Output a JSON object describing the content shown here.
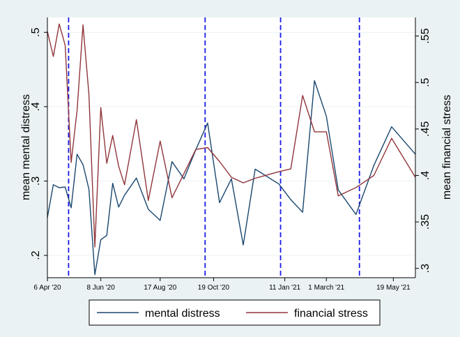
{
  "chart_data": {
    "type": "line",
    "x_tick_labels": [
      "6 Apr '20",
      "8 Jun '20",
      "17 Aug '20",
      "19 Oct '20",
      "11 Jan '21",
      "1 March '21",
      "19 May '21"
    ],
    "x_tick_dates": [
      "2020-04-06",
      "2020-06-08",
      "2020-08-17",
      "2020-10-19",
      "2021-01-11",
      "2021-03-01",
      "2021-05-19"
    ],
    "ylabel_left": "mean mental distress",
    "ylabel_right": "mean financial stress",
    "y_left_ticks": [
      ".2",
      ".3",
      ".4",
      ".5"
    ],
    "y_left_tick_values": [
      0.2,
      0.3,
      0.4,
      0.5
    ],
    "y_right_ticks": [
      ".3",
      ".35",
      ".4",
      ".45",
      ".5",
      ".55"
    ],
    "y_right_tick_values": [
      0.3,
      0.35,
      0.4,
      0.45,
      0.5,
      0.55
    ],
    "ylim_left": [
      0.17,
      0.52
    ],
    "ylim_right": [
      0.29,
      0.57
    ],
    "xlim": [
      "2020-04-06",
      "2021-06-14"
    ],
    "vlines": [
      "2020-05-01",
      "2020-10-09",
      "2021-01-06",
      "2021-04-09"
    ],
    "grid": true,
    "legend_position": "bottom",
    "colors": {
      "background": "#eaf2f3",
      "plot_area": "#ffffff",
      "mental": "#1a476f",
      "financial": "#90353b",
      "vline": "#1a1ae6",
      "grid": "#eaf2f3"
    },
    "series": [
      {
        "name": "mental distress",
        "axis": "left",
        "x": [
          "2020-04-06",
          "2020-04-13",
          "2020-04-20",
          "2020-04-27",
          "2020-05-04",
          "2020-05-11",
          "2020-05-18",
          "2020-05-25",
          "2020-06-01",
          "2020-06-08",
          "2020-06-15",
          "2020-06-22",
          "2020-06-29",
          "2020-07-06",
          "2020-07-20",
          "2020-08-03",
          "2020-08-17",
          "2020-08-31",
          "2020-09-14",
          "2020-09-28",
          "2020-10-12",
          "2020-10-26",
          "2020-11-09",
          "2020-11-23",
          "2020-12-07",
          "2021-01-04",
          "2021-01-18",
          "2021-02-01",
          "2021-02-15",
          "2021-03-01",
          "2021-03-15",
          "2021-04-05",
          "2021-04-26",
          "2021-05-17",
          "2021-06-14"
        ],
        "values": [
          0.251,
          0.295,
          0.291,
          0.292,
          0.264,
          0.336,
          0.322,
          0.289,
          0.174,
          0.221,
          0.227,
          0.297,
          0.265,
          0.281,
          0.304,
          0.262,
          0.247,
          0.326,
          0.303,
          0.342,
          0.378,
          0.271,
          0.303,
          0.214,
          0.316,
          0.296,
          0.275,
          0.258,
          0.435,
          0.387,
          0.288,
          0.255,
          0.321,
          0.373,
          0.336
        ]
      },
      {
        "name": "financial stress",
        "axis": "right",
        "x": [
          "2020-04-06",
          "2020-04-13",
          "2020-04-20",
          "2020-04-27",
          "2020-05-04",
          "2020-05-11",
          "2020-05-18",
          "2020-05-25",
          "2020-06-01",
          "2020-06-08",
          "2020-06-15",
          "2020-06-22",
          "2020-06-29",
          "2020-07-06",
          "2020-07-20",
          "2020-08-03",
          "2020-08-17",
          "2020-08-31",
          "2020-09-14",
          "2020-09-28",
          "2020-10-12",
          "2020-10-26",
          "2020-11-09",
          "2020-11-23",
          "2020-12-07",
          "2021-01-04",
          "2021-01-18",
          "2021-02-01",
          "2021-02-15",
          "2021-03-01",
          "2021-03-15",
          "2021-04-05",
          "2021-04-26",
          "2021-05-17",
          "2021-06-14"
        ],
        "values": [
          0.555,
          0.528,
          0.563,
          0.54,
          0.414,
          0.47,
          0.562,
          0.487,
          0.323,
          0.473,
          0.413,
          0.443,
          0.41,
          0.39,
          0.46,
          0.373,
          0.437,
          0.376,
          0.402,
          0.428,
          0.43,
          0.415,
          0.398,
          0.392,
          0.397,
          0.404,
          0.407,
          0.486,
          0.447,
          0.447,
          0.378,
          0.387,
          0.4,
          0.44,
          0.398
        ]
      }
    ]
  }
}
